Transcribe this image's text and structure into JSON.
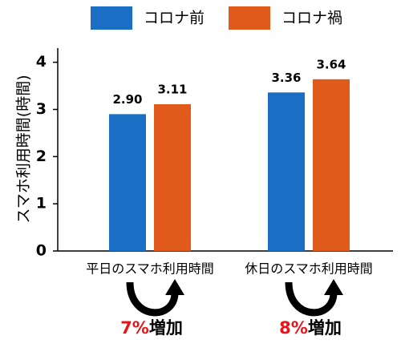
{
  "chart_data": {
    "type": "bar",
    "y_label": "スマホ利用時間(時間)",
    "categories": [
      "平日のスマホ利用時間",
      "休日のスマホ利用時間"
    ],
    "series": [
      {
        "name": "コロナ前",
        "color": "#1a6ec3",
        "values": [
          2.9,
          3.36
        ],
        "value_labels": [
          "2.90",
          "3.36"
        ]
      },
      {
        "name": "コロナ禍",
        "color": "#e05a1c",
        "values": [
          3.11,
          3.64
        ],
        "value_labels": [
          "3.11",
          "3.64"
        ]
      }
    ],
    "ylim": [
      0,
      4.3
    ],
    "yticks": [
      0,
      1,
      2,
      3,
      4
    ],
    "annotations": [
      {
        "highlight": "7%",
        "text": "増加"
      },
      {
        "highlight": "8%",
        "text": "増加"
      }
    ]
  }
}
